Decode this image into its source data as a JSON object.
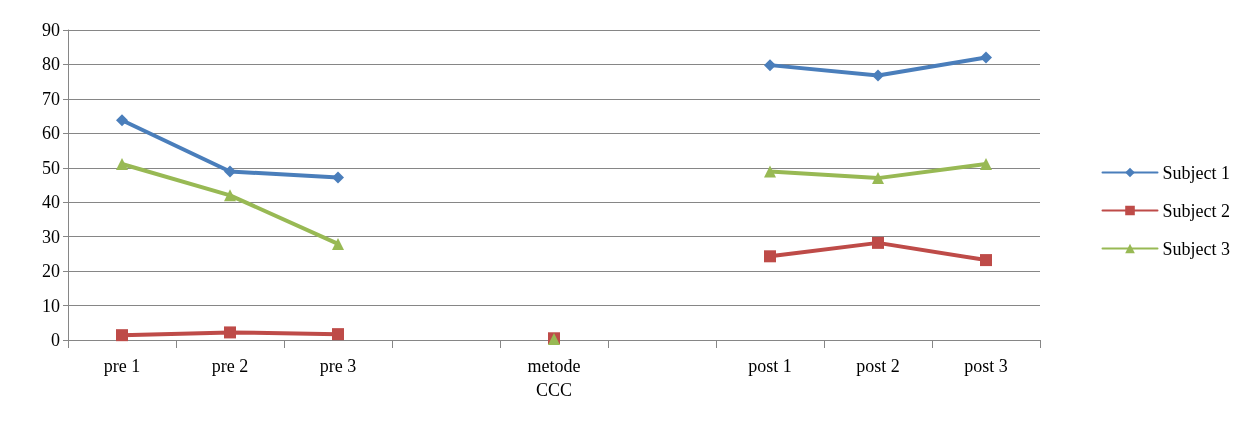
{
  "chart_data": {
    "type": "line",
    "categories": [
      "pre 1",
      "pre 2",
      "pre 3",
      null,
      "metode\nCCC",
      null,
      "post 1",
      "post 2",
      "post 3"
    ],
    "series": [
      {
        "name": "Subject 1",
        "color": "#4a7ebb",
        "marker": "diamond",
        "values": [
          63.8,
          48.9,
          47.2,
          null,
          null,
          null,
          79.8,
          76.8,
          82
        ]
      },
      {
        "name": "Subject 2",
        "color": "#be4b48",
        "marker": "square",
        "values": [
          1.4,
          2.2,
          1.7,
          null,
          0.5,
          null,
          24.3,
          28.2,
          23.2
        ]
      },
      {
        "name": "Subject 3",
        "color": "#98b954",
        "marker": "triangle",
        "values": [
          51.1,
          42,
          27.9,
          null,
          0.3,
          null,
          48.9,
          47,
          51.1
        ]
      }
    ],
    "ylim": [
      0,
      90
    ],
    "yticks": [
      0,
      10,
      20,
      30,
      40,
      50,
      60,
      70,
      80,
      90
    ],
    "grid": "y",
    "legend": "right",
    "line_style": "solid"
  }
}
